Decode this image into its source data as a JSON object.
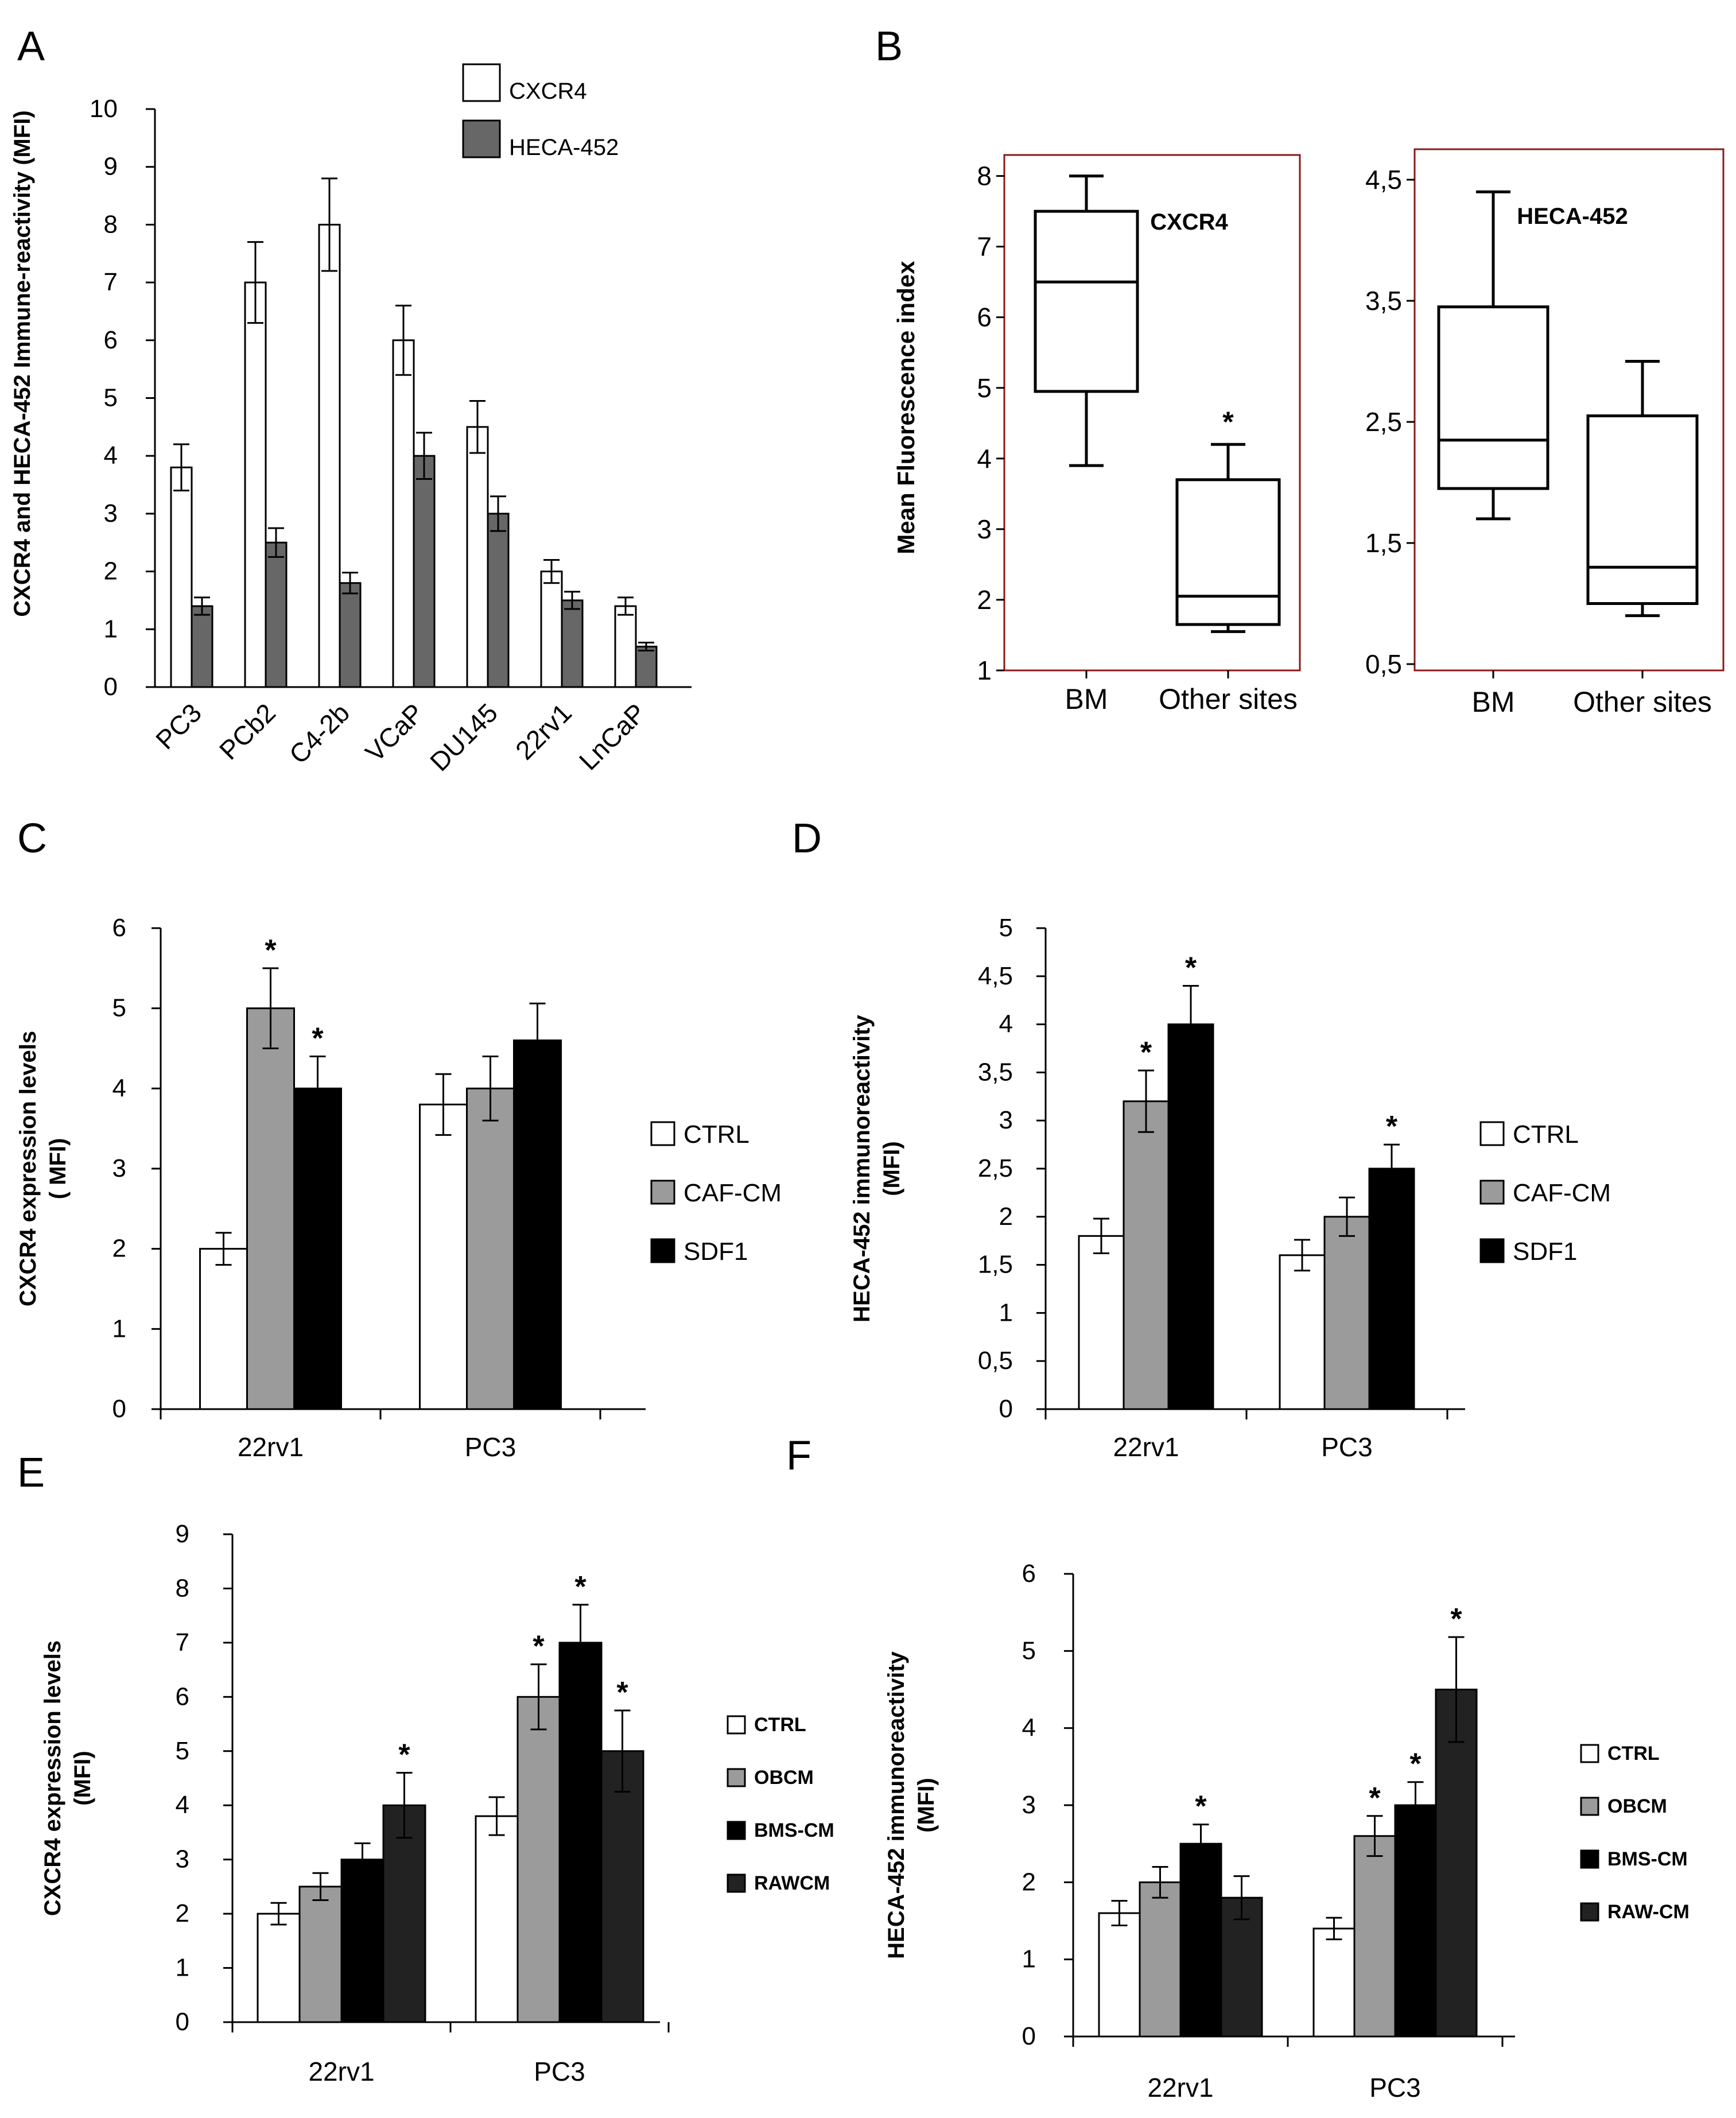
{
  "figure": {
    "colors": {
      "white": "#ffffff",
      "gray": "#9b9b9b",
      "black": "#000000",
      "dark": "#222222",
      "darkgray": "#676767",
      "border": "#8b1a1a"
    }
  },
  "chart_data": [
    {
      "id": "A",
      "panel_label": "A",
      "type": "bar",
      "ylabel": "CXCR4 and HECA-452 Immune-reactivity (MFI)",
      "ylim": [
        0,
        10
      ],
      "yticks": [
        "0",
        "1",
        "2",
        "3",
        "4",
        "5",
        "6",
        "7",
        "8",
        "9",
        "10"
      ],
      "categories": [
        "PC3",
        "PCb2",
        "C4-2b",
        "VCaP",
        "DU145",
        "22rv1",
        "LnCaP"
      ],
      "series": [
        {
          "name": "CXCR4",
          "color": "#ffffff",
          "values": [
            3.8,
            7.0,
            8.0,
            6.0,
            4.5,
            2.0,
            1.4
          ],
          "errors": [
            0.4,
            0.7,
            0.8,
            0.6,
            0.45,
            0.2,
            0.15
          ]
        },
        {
          "name": "HECA-452",
          "color": "#676767",
          "values": [
            1.4,
            2.5,
            1.8,
            4.0,
            3.0,
            1.5,
            0.7
          ],
          "errors": [
            0.15,
            0.25,
            0.18,
            0.4,
            0.3,
            0.15,
            0.07
          ]
        }
      ]
    },
    {
      "id": "B",
      "panel_label": "B",
      "type": "box",
      "ylabel": "Mean Fluorescence index",
      "plots": [
        {
          "id": "B1",
          "title": "CXCR4",
          "ylim": [
            1,
            8.2
          ],
          "yticks": [
            "1",
            "2",
            "3",
            "4",
            "5",
            "6",
            "7",
            "8"
          ],
          "categories": [
            "BM",
            "Other sites"
          ],
          "boxes": [
            {
              "min": 3.9,
              "q1": 4.95,
              "median": 6.5,
              "q3": 7.5,
              "max": 8.0,
              "marker": ""
            },
            {
              "min": 1.55,
              "q1": 1.65,
              "median": 2.05,
              "q3": 3.7,
              "max": 4.2,
              "marker": "*"
            }
          ]
        },
        {
          "id": "B2",
          "title": "HECA-452",
          "ylim": [
            0.5,
            4.6
          ],
          "yticks": [
            "0,5",
            "1,5",
            "2,5",
            "3,5",
            "4,5"
          ],
          "categories": [
            "BM",
            "Other sites"
          ],
          "boxes": [
            {
              "min": 1.7,
              "q1": 1.95,
              "median": 2.35,
              "q3": 3.45,
              "max": 4.4,
              "marker": ""
            },
            {
              "min": 0.9,
              "q1": 1.0,
              "median": 1.3,
              "q3": 2.55,
              "max": 3.0,
              "marker": ""
            }
          ]
        }
      ]
    },
    {
      "id": "C",
      "panel_label": "C",
      "type": "bar",
      "ylabel": [
        "CXCR4  expression levels",
        "( MFI)"
      ],
      "ylim": [
        0,
        6
      ],
      "yticks": [
        "0",
        "1",
        "2",
        "3",
        "4",
        "5",
        "6"
      ],
      "categories": [
        "22rv1",
        "PC3"
      ],
      "series": [
        {
          "name": "CTRL",
          "color": "#ffffff",
          "values": [
            2.0,
            3.8
          ],
          "errors": [
            0.2,
            0.38
          ],
          "stars": [
            "",
            ""
          ]
        },
        {
          "name": "CAF-CM",
          "color": "#9b9b9b",
          "values": [
            5.0,
            4.0
          ],
          "errors": [
            0.5,
            0.4
          ],
          "stars": [
            "*",
            ""
          ]
        },
        {
          "name": "SDF1",
          "color": "#000000",
          "values": [
            4.0,
            4.6
          ],
          "errors": [
            0.4,
            0.46
          ],
          "stars": [
            "*",
            ""
          ]
        }
      ]
    },
    {
      "id": "D",
      "panel_label": "D",
      "type": "bar",
      "ylabel": [
        "HECA-452 immunoreactivity",
        "(MFI)"
      ],
      "ylim": [
        0,
        5
      ],
      "yticks": [
        "0",
        "0,5",
        "1",
        "1,5",
        "2",
        "2,5",
        "3",
        "3,5",
        "4",
        "4,5",
        "5"
      ],
      "categories": [
        "22rv1",
        "PC3"
      ],
      "series": [
        {
          "name": "CTRL",
          "color": "#ffffff",
          "values": [
            1.8,
            1.6
          ],
          "errors": [
            0.18,
            0.16
          ],
          "stars": [
            "",
            ""
          ]
        },
        {
          "name": "CAF-CM",
          "color": "#9b9b9b",
          "values": [
            3.2,
            2.0
          ],
          "errors": [
            0.32,
            0.2
          ],
          "stars": [
            "*",
            ""
          ]
        },
        {
          "name": "SDF1",
          "color": "#000000",
          "values": [
            4.0,
            2.5
          ],
          "errors": [
            0.4,
            0.25
          ],
          "stars": [
            "*",
            "*"
          ]
        }
      ]
    },
    {
      "id": "E",
      "panel_label": "E",
      "type": "bar",
      "ylabel": [
        "CXCR4  expression levels",
        "(MFI)"
      ],
      "ylim": [
        0,
        9
      ],
      "yticks": [
        "0",
        "1",
        "2",
        "3",
        "4",
        "5",
        "6",
        "7",
        "8",
        "9"
      ],
      "categories": [
        "22rv1",
        "PC3"
      ],
      "series": [
        {
          "name": "CTRL",
          "color": "#ffffff",
          "values": [
            2.0,
            3.8
          ],
          "errors": [
            0.2,
            0.35
          ],
          "stars": [
            "",
            ""
          ]
        },
        {
          "name": "OBCM",
          "color": "#9b9b9b",
          "values": [
            2.5,
            6.0
          ],
          "errors": [
            0.25,
            0.6
          ],
          "stars": [
            "",
            "*"
          ]
        },
        {
          "name": "BMS-CM",
          "color": "#000000",
          "values": [
            3.0,
            7.0
          ],
          "errors": [
            0.3,
            0.7
          ],
          "stars": [
            "",
            "*"
          ]
        },
        {
          "name": "RAWCM",
          "color": "#222222",
          "values": [
            4.0,
            5.0
          ],
          "errors": [
            0.6,
            0.75
          ],
          "stars": [
            "*",
            "*"
          ]
        }
      ]
    },
    {
      "id": "F",
      "panel_label": "F",
      "type": "bar",
      "ylabel": [
        "HECA-452 immunoreactivity",
        "(MFI)"
      ],
      "ylim": [
        0,
        6
      ],
      "yticks": [
        "0",
        "1",
        "2",
        "3",
        "4",
        "5",
        "6"
      ],
      "categories": [
        "22rv1",
        "PC3"
      ],
      "series": [
        {
          "name": "CTRL",
          "color": "#ffffff",
          "values": [
            1.6,
            1.4
          ],
          "errors": [
            0.16,
            0.14
          ],
          "stars": [
            "",
            ""
          ]
        },
        {
          "name": "OBCM",
          "color": "#9b9b9b",
          "values": [
            2.0,
            2.6
          ],
          "errors": [
            0.2,
            0.26
          ],
          "stars": [
            "",
            "*"
          ]
        },
        {
          "name": "BMS-CM",
          "color": "#000000",
          "values": [
            2.5,
            3.0
          ],
          "errors": [
            0.25,
            0.3
          ],
          "stars": [
            "*",
            "*"
          ]
        },
        {
          "name": "RAW-CM",
          "color": "#222222",
          "values": [
            1.8,
            4.5
          ],
          "errors": [
            0.28,
            0.68
          ],
          "stars": [
            "",
            "*"
          ]
        }
      ]
    }
  ]
}
